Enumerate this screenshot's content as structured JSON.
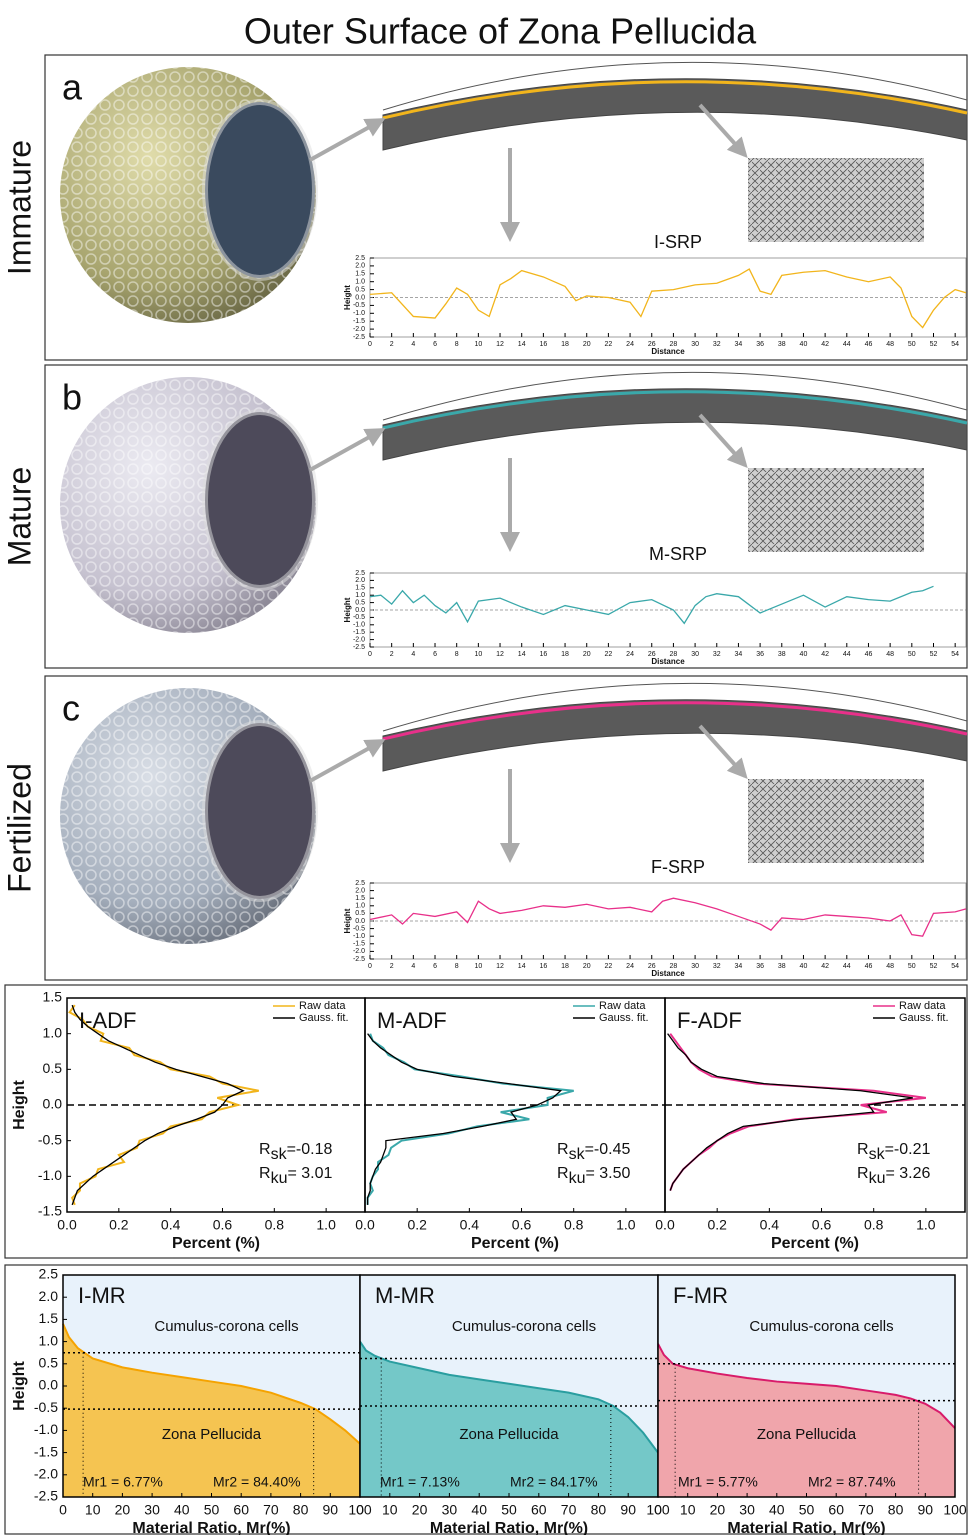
{
  "title": "Outer Surface of Zona Pellucida",
  "panels": [
    {
      "letter": "a",
      "stage": "Immature"
    },
    {
      "letter": "b",
      "stage": "Mature"
    },
    {
      "letter": "c",
      "stage": "Fertilized"
    }
  ],
  "chart_data": [
    {
      "type": "profile",
      "title": "I-SRP",
      "xlabel": "Distance",
      "ylabel": "Height",
      "x": [
        0,
        2,
        4,
        6,
        7,
        8,
        9,
        10,
        11,
        12,
        13,
        14,
        16,
        17,
        18,
        19,
        20,
        22,
        24,
        25,
        26,
        28,
        30,
        32,
        34,
        35,
        36,
        37,
        38,
        40,
        42,
        44,
        46,
        48,
        49,
        50,
        51,
        52,
        53,
        54,
        55
      ],
      "series": [
        {
          "color": "#f2b51c",
          "values": [
            0.2,
            0.3,
            -1.2,
            -1.3,
            -0.4,
            0.6,
            0.2,
            -0.8,
            -1.2,
            0.8,
            1.2,
            1.7,
            1.3,
            1.0,
            0.7,
            -0.2,
            0.1,
            0.0,
            -0.3,
            -1.2,
            0.4,
            0.5,
            0.8,
            0.9,
            1.4,
            1.8,
            0.4,
            0.2,
            1.4,
            1.6,
            1.7,
            1.3,
            1.0,
            1.3,
            0.6,
            -1.2,
            -1.9,
            -0.8,
            0.0,
            0.5,
            0.3
          ]
        }
      ],
      "xlim": [
        0,
        55
      ],
      "ylim": [
        -2.5,
        2.5
      ],
      "hline": 0,
      "xticks": [
        0,
        2,
        4,
        6,
        8,
        10,
        12,
        14,
        16,
        18,
        20,
        22,
        24,
        26,
        28,
        30,
        32,
        34,
        36,
        38,
        40,
        42,
        44,
        46,
        48,
        50,
        52,
        54
      ],
      "yticks": [
        2.5,
        {
          "value": 2,
          "label": "2.0"
        },
        1.5,
        {
          "value": 1,
          "label": "1.0"
        },
        0.5,
        {
          "value": 0,
          "label": "0.0"
        },
        -0.5,
        {
          "value": -1,
          "label": "-1.0"
        },
        -1.5,
        {
          "value": -2,
          "label": "-2.0"
        },
        -2.5
      ]
    },
    {
      "type": "profile",
      "title": "M-SRP",
      "xlabel": "Distance",
      "ylabel": "Height",
      "x": [
        0,
        1,
        2,
        3,
        4,
        5,
        6,
        7,
        8,
        9,
        10,
        12,
        14,
        16,
        18,
        20,
        22,
        24,
        26,
        28,
        29,
        30,
        31,
        32,
        34,
        36,
        38,
        40,
        42,
        44,
        46,
        48,
        50,
        51,
        52
      ],
      "series": [
        {
          "color": "#3aa8aa",
          "values": [
            0.9,
            1.0,
            0.4,
            1.3,
            0.5,
            1.0,
            0.3,
            -0.2,
            0.5,
            -0.8,
            0.6,
            0.8,
            0.2,
            -0.3,
            0.3,
            0.0,
            -0.3,
            0.5,
            0.7,
            0.0,
            -0.9,
            0.3,
            0.9,
            1.1,
            0.9,
            -0.2,
            0.4,
            1.0,
            0.2,
            0.9,
            0.7,
            0.6,
            1.2,
            1.3,
            1.6
          ]
        }
      ],
      "xlim": [
        0,
        55
      ],
      "ylim": [
        -2.5,
        2.5
      ],
      "hline": 0,
      "xticks": [
        0,
        2,
        4,
        6,
        8,
        10,
        12,
        14,
        16,
        18,
        20,
        22,
        24,
        26,
        28,
        30,
        32,
        34,
        36,
        38,
        40,
        42,
        44,
        46,
        48,
        50,
        52,
        54
      ],
      "yticks": [
        2.5,
        {
          "value": 2,
          "label": "2.0"
        },
        1.5,
        {
          "value": 1,
          "label": "1.0"
        },
        0.5,
        {
          "value": 0,
          "label": "0.0"
        },
        -0.5,
        {
          "value": -1,
          "label": "-1.0"
        },
        -1.5,
        {
          "value": -2,
          "label": "-2.0"
        },
        -2.5
      ]
    },
    {
      "type": "profile",
      "title": "F-SRP",
      "xlabel": "Distance",
      "ylabel": "Height",
      "x": [
        0,
        2,
        3,
        4,
        6,
        8,
        9,
        10,
        11,
        12,
        14,
        16,
        18,
        20,
        22,
        24,
        26,
        27,
        28,
        30,
        32,
        34,
        36,
        37,
        38,
        40,
        42,
        44,
        46,
        48,
        49,
        50,
        51,
        52,
        54,
        55
      ],
      "series": [
        {
          "color": "#e8308a",
          "values": [
            0.1,
            0.4,
            -0.2,
            0.5,
            0.3,
            0.6,
            -0.1,
            1.3,
            0.8,
            0.5,
            0.7,
            1.0,
            0.9,
            1.1,
            0.8,
            0.9,
            0.6,
            1.3,
            1.5,
            1.2,
            0.8,
            0.3,
            -0.2,
            -0.6,
            0.2,
            0.1,
            0.4,
            0.3,
            0.2,
            0.0,
            0.4,
            -0.9,
            -1.0,
            0.5,
            0.6,
            0.8
          ]
        }
      ],
      "xlim": [
        0,
        55
      ],
      "ylim": [
        -2.5,
        2.5
      ],
      "hline": 0,
      "xticks": [
        0,
        2,
        4,
        6,
        8,
        10,
        12,
        14,
        16,
        18,
        20,
        22,
        24,
        26,
        28,
        30,
        32,
        34,
        36,
        38,
        40,
        42,
        44,
        46,
        48,
        50,
        52,
        54
      ],
      "yticks": [
        2.5,
        {
          "value": 2,
          "label": "2.0"
        },
        1.5,
        {
          "value": 1,
          "label": "1.0"
        },
        0.5,
        {
          "value": 0,
          "label": "0.0"
        },
        -0.5,
        {
          "value": -1,
          "label": "-1.0"
        },
        -1.5,
        {
          "value": -2,
          "label": "-2.0"
        },
        -2.5
      ]
    },
    {
      "type": "distribution",
      "title": "I-ADF",
      "xlabel": "Percent (%)",
      "ylabel": "Height",
      "y": [
        1.4,
        1.3,
        1.2,
        1.1,
        1.0,
        0.9,
        0.8,
        0.7,
        0.6,
        0.5,
        0.4,
        0.3,
        0.2,
        0.1,
        0.0,
        -0.1,
        -0.2,
        -0.3,
        -0.4,
        -0.5,
        -0.6,
        -0.7,
        -0.8,
        -0.9,
        -1.0,
        -1.1,
        -1.2,
        -1.3,
        -1.4
      ],
      "series": [
        {
          "name": "Raw data",
          "color": "#f2b51c",
          "values": [
            0.03,
            0.01,
            0.06,
            0.08,
            0.14,
            0.13,
            0.24,
            0.26,
            0.36,
            0.4,
            0.55,
            0.6,
            0.74,
            0.58,
            0.66,
            0.55,
            0.52,
            0.4,
            0.37,
            0.28,
            0.27,
            0.2,
            0.22,
            0.12,
            0.11,
            0.05,
            0.05,
            0.02,
            0.03
          ]
        },
        {
          "name": "Gauss. fit.",
          "color": "#000000",
          "values": [
            0.02,
            0.03,
            0.05,
            0.08,
            0.12,
            0.16,
            0.22,
            0.28,
            0.34,
            0.42,
            0.52,
            0.62,
            0.68,
            0.62,
            0.6,
            0.57,
            0.5,
            0.42,
            0.35,
            0.3,
            0.26,
            0.22,
            0.18,
            0.14,
            0.1,
            0.07,
            0.04,
            0.03,
            0.02
          ]
        }
      ],
      "xlim": [
        0,
        1.15
      ],
      "ylim": [
        -1.5,
        1.5
      ],
      "hline": 0,
      "xticks": [
        {
          "value": 0,
          "label": "0.0"
        },
        0.2,
        0.4,
        0.6,
        0.8,
        {
          "value": 1,
          "label": "1.0"
        }
      ],
      "yticks": [
        1.5,
        {
          "value": 1,
          "label": "1.0"
        },
        0.5,
        {
          "value": 0,
          "label": "0.0"
        },
        -0.5,
        {
          "value": -1,
          "label": "-1.0"
        },
        -1.5
      ],
      "stats": [
        {
          "symbol": "R",
          "subscript": "sk",
          "text": "=-0.18"
        },
        {
          "symbol": "R",
          "subscript": "ku",
          "text": "= 3.01"
        }
      ]
    },
    {
      "type": "distribution",
      "title": "M-ADF",
      "xlabel": "Percent (%)",
      "y": [
        1.0,
        0.9,
        0.8,
        0.7,
        0.6,
        0.5,
        0.4,
        0.3,
        0.2,
        0.1,
        0.0,
        -0.1,
        -0.2,
        -0.3,
        -0.4,
        -0.5,
        -0.6,
        -0.7,
        -0.8,
        -0.9,
        -1.0,
        -1.1,
        -1.2,
        -1.3,
        -1.4
      ],
      "series": [
        {
          "name": "Raw data",
          "color": "#3aa8aa",
          "values": [
            0.02,
            0.03,
            0.07,
            0.09,
            0.15,
            0.19,
            0.37,
            0.53,
            0.8,
            0.7,
            0.7,
            0.52,
            0.63,
            0.43,
            0.32,
            0.14,
            0.1,
            0.09,
            0.05,
            0.05,
            0.03,
            0.02,
            0.03,
            0.01,
            0.01
          ]
        },
        {
          "name": "Gauss. fit.",
          "color": "#000000",
          "values": [
            0.01,
            0.03,
            0.06,
            0.1,
            0.14,
            0.2,
            0.34,
            0.55,
            0.75,
            0.72,
            0.66,
            0.56,
            0.58,
            0.45,
            0.3,
            0.08,
            0.08,
            0.07,
            0.06,
            0.04,
            0.03,
            0.02,
            0.02,
            0.01,
            0.01
          ]
        }
      ],
      "xlim": [
        0,
        1.15
      ],
      "ylim": [
        -1.5,
        1.5
      ],
      "hline": 0,
      "xticks": [
        {
          "value": 0,
          "label": "0.0"
        },
        0.2,
        0.4,
        0.6,
        0.8,
        {
          "value": 1,
          "label": "1.0"
        }
      ],
      "stats": [
        {
          "symbol": "R",
          "subscript": "sk",
          "text": "=-0.45"
        },
        {
          "symbol": "R",
          "subscript": "ku",
          "text": "= 3.50"
        }
      ]
    },
    {
      "type": "distribution",
      "title": "F-ADF",
      "xlabel": "Percent (%)",
      "y": [
        1.0,
        0.9,
        0.8,
        0.7,
        0.6,
        0.5,
        0.4,
        0.3,
        0.2,
        0.1,
        0.0,
        -0.1,
        -0.2,
        -0.3,
        -0.4,
        -0.5,
        -0.6,
        -0.7,
        -0.8,
        -0.9,
        -1.0,
        -1.1,
        -1.2
      ],
      "series": [
        {
          "name": "Raw data",
          "color": "#e8308a",
          "values": [
            0.02,
            0.04,
            0.06,
            0.08,
            0.1,
            0.13,
            0.18,
            0.35,
            0.8,
            1.0,
            0.75,
            0.85,
            0.5,
            0.32,
            0.25,
            0.2,
            0.17,
            0.13,
            0.1,
            0.07,
            0.05,
            0.03,
            0.02
          ]
        },
        {
          "name": "Gauss. fit.",
          "color": "#000000",
          "values": [
            0.01,
            0.03,
            0.05,
            0.08,
            0.1,
            0.14,
            0.2,
            0.38,
            0.75,
            0.95,
            0.78,
            0.8,
            0.52,
            0.3,
            0.24,
            0.2,
            0.16,
            0.13,
            0.1,
            0.07,
            0.05,
            0.03,
            0.02
          ]
        }
      ],
      "xlim": [
        0,
        1.15
      ],
      "ylim": [
        -1.5,
        1.5
      ],
      "hline": 0,
      "xticks": [
        {
          "value": 0,
          "label": "0.0"
        },
        0.2,
        0.4,
        0.6,
        0.8,
        {
          "value": 1,
          "label": "1.0"
        }
      ],
      "stats": [
        {
          "symbol": "R",
          "subscript": "sk",
          "text": "=-0.21"
        },
        {
          "symbol": "R",
          "subscript": "ku",
          "text": "= 3.26"
        }
      ]
    },
    {
      "type": "area",
      "title": "I-MR",
      "xlabel": "Material Ratio, Mr(%)",
      "ylabel": "Height",
      "x": [
        0,
        2,
        5,
        10,
        20,
        30,
        40,
        50,
        60,
        70,
        80,
        85,
        90,
        95,
        100
      ],
      "series": [
        {
          "color": "#f5a300",
          "fill": "#f5c451",
          "values": [
            1.4,
            1.1,
            0.85,
            0.62,
            0.42,
            0.3,
            0.2,
            0.1,
            0.0,
            -0.15,
            -0.38,
            -0.52,
            -0.75,
            -1.0,
            -1.3
          ]
        }
      ],
      "xlim": [
        0,
        100
      ],
      "ylim": [
        -2.5,
        2.5
      ],
      "xticks": [
        0,
        10,
        20,
        30,
        40,
        50,
        60,
        70,
        80,
        90,
        100
      ],
      "yticks": [
        2.5,
        {
          "value": 2,
          "label": "2.0"
        },
        1.5,
        {
          "value": 1,
          "label": "1.0"
        },
        0.5,
        {
          "value": 0,
          "label": "0.0"
        },
        -0.5,
        {
          "value": -1,
          "label": "-1.0"
        },
        -1.5,
        {
          "value": -2,
          "label": "-2.0"
        },
        -2.5
      ],
      "regions": [
        "Cumulus-corona cells",
        "Zona Pellucida"
      ],
      "levels": [
        0.75,
        -0.52
      ],
      "mr1": {
        "value": 6.77,
        "label": "Mr1 = 6.77%"
      },
      "mr2": {
        "value": 84.4,
        "label": "Mr2 = 84.40%"
      }
    },
    {
      "type": "area",
      "title": "M-MR",
      "xlabel": "Material Ratio, Mr(%)",
      "x": [
        0,
        2,
        5,
        10,
        20,
        30,
        40,
        50,
        60,
        70,
        80,
        85,
        90,
        95,
        100
      ],
      "series": [
        {
          "color": "#2a9ea0",
          "fill": "#74c8c8",
          "values": [
            1.0,
            0.8,
            0.68,
            0.55,
            0.4,
            0.25,
            0.15,
            0.05,
            -0.05,
            -0.15,
            -0.3,
            -0.45,
            -0.7,
            -1.05,
            -1.5
          ]
        }
      ],
      "xlim": [
        0,
        100
      ],
      "ylim": [
        -2.5,
        2.5
      ],
      "xticks": [
        0,
        10,
        20,
        30,
        40,
        50,
        60,
        70,
        80,
        90,
        100
      ],
      "regions": [
        "Cumulus-corona cells",
        "Zona Pellucida"
      ],
      "levels": [
        0.62,
        -0.45
      ],
      "mr1": {
        "value": 7.13,
        "label": "Mr1 = 7.13%"
      },
      "mr2": {
        "value": 84.17,
        "label": "Mr2 = 84.17%"
      }
    },
    {
      "type": "area",
      "title": "F-MR",
      "xlabel": "Material Ratio, Mr(%)",
      "x": [
        0,
        2,
        5,
        10,
        20,
        30,
        40,
        50,
        60,
        70,
        80,
        85,
        90,
        95,
        100
      ],
      "series": [
        {
          "color": "#d81b6a",
          "fill": "#f0a5ab",
          "values": [
            0.95,
            0.7,
            0.5,
            0.4,
            0.28,
            0.18,
            0.1,
            0.05,
            0.0,
            -0.1,
            -0.2,
            -0.28,
            -0.4,
            -0.6,
            -0.95
          ]
        }
      ],
      "xlim": [
        0,
        100
      ],
      "ylim": [
        -2.5,
        2.5
      ],
      "xticks": [
        0,
        10,
        20,
        30,
        40,
        50,
        60,
        70,
        80,
        90,
        100
      ],
      "regions": [
        "Cumulus-corona cells",
        "Zona Pellucida"
      ],
      "levels": [
        0.5,
        -0.33
      ],
      "mr1": {
        "value": 5.77,
        "label": "Mr1 = 5.77%"
      },
      "mr2": {
        "value": 87.74,
        "label": "Mr2 = 87.74%"
      }
    }
  ]
}
